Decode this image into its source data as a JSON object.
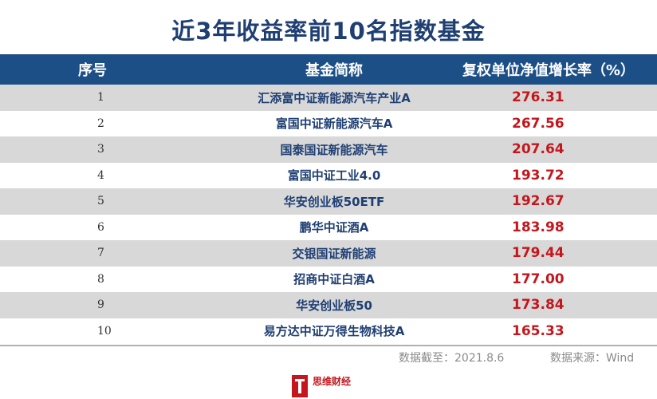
{
  "title": "近3年收益率前10名指数基金",
  "headers": {
    "index": "序号",
    "name": "基金简称",
    "growth": "复权单位净值增长率（%）"
  },
  "rows": [
    {
      "index": "1",
      "name": "汇添富中证新能源汽车产业A",
      "growth": "276.31"
    },
    {
      "index": "2",
      "name": "富国中证新能源汽车A",
      "growth": "267.56"
    },
    {
      "index": "3",
      "name": "国泰国证新能源汽车",
      "growth": "207.64"
    },
    {
      "index": "4",
      "name": "富国中证工业4.0",
      "growth": "193.72"
    },
    {
      "index": "5",
      "name": "华安创业板50ETF",
      "growth": "192.67"
    },
    {
      "index": "6",
      "name": "鹏华中证酒A",
      "growth": "183.98"
    },
    {
      "index": "7",
      "name": "交银国证新能源",
      "growth": "179.44"
    },
    {
      "index": "8",
      "name": "招商中证白酒A",
      "growth": "177.00"
    },
    {
      "index": "9",
      "name": "华安创业板50",
      "growth": "173.84"
    },
    {
      "index": "10",
      "name": "易方达中证万得生物科技A",
      "growth": "165.33"
    }
  ],
  "footnote": {
    "date": "数据截至：2021.8.6",
    "source": "数据来源：Wind"
  },
  "logo": {
    "name": "思维财经"
  },
  "colors": {
    "header_bg": "#1c4f86",
    "title": "#1f3f73",
    "value": "#c4161c",
    "stripe": "#d8d8d8"
  }
}
